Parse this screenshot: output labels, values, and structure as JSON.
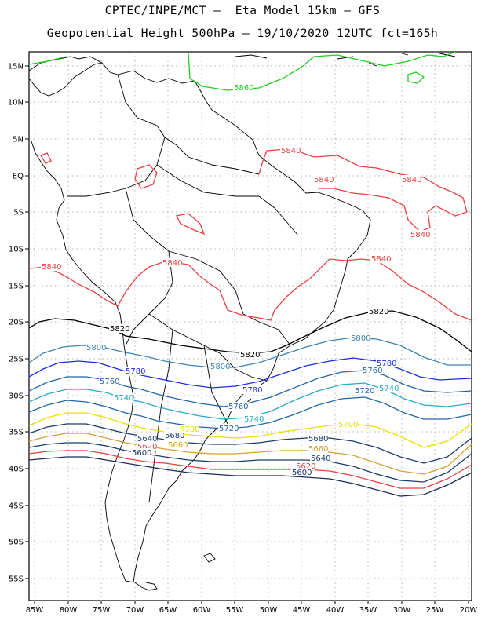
{
  "title_line1": "CPTEC/INPE/MCT –  Eta Model 15km – GFS",
  "title_line2": "Geopotential Height 500hPa – 19/10/2020 12UTC fct=165h",
  "lon_labels": [
    "85W",
    "80W",
    "75W",
    "70W",
    "65W",
    "60W",
    "55W",
    "50W",
    "45W",
    "40W",
    "35W",
    "30W",
    "25W",
    "20W"
  ],
  "lat_labels": [
    "15N",
    "10N",
    "5N",
    "EQ",
    "5S",
    "10S",
    "15S",
    "20S",
    "25S",
    "30S",
    "35S",
    "40S",
    "45S",
    "50S",
    "55S"
  ],
  "contour_labels": [
    {
      "text": "5860",
      "color": "#22cc22"
    },
    {
      "text": "5840",
      "color": "#e84040"
    },
    {
      "text": "5840",
      "color": "#e84040"
    },
    {
      "text": "5840",
      "color": "#e84040"
    },
    {
      "text": "5840",
      "color": "#e84040"
    },
    {
      "text": "5840",
      "color": "#e84040"
    },
    {
      "text": "5840",
      "color": "#e84040"
    },
    {
      "text": "5840",
      "color": "#e84040"
    },
    {
      "text": "5820",
      "color": "#000000"
    },
    {
      "text": "5820",
      "color": "#000000"
    },
    {
      "text": "5820",
      "color": "#000000"
    },
    {
      "text": "5800",
      "color": "#3a86b4"
    },
    {
      "text": "5800",
      "color": "#3a86b4"
    },
    {
      "text": "5800",
      "color": "#3a86b4"
    },
    {
      "text": "5780",
      "color": "#1a2cdc"
    },
    {
      "text": "5780",
      "color": "#1a2cdc"
    },
    {
      "text": "5780",
      "color": "#1a2cdc"
    },
    {
      "text": "5760",
      "color": "#2266aa"
    },
    {
      "text": "5760",
      "color": "#2266aa"
    },
    {
      "text": "5760",
      "color": "#2266aa"
    },
    {
      "text": "5740",
      "color": "#2aa8c8"
    },
    {
      "text": "5740",
      "color": "#2aa8c8"
    },
    {
      "text": "5740",
      "color": "#2aa8c8"
    },
    {
      "text": "5720",
      "color": "#2266aa"
    },
    {
      "text": "5720",
      "color": "#2266aa"
    },
    {
      "text": "5700",
      "color": "#e8e000"
    },
    {
      "text": "5700",
      "color": "#e8e000"
    },
    {
      "text": "5680",
      "color": "#1c3c6c"
    },
    {
      "text": "5680",
      "color": "#1c3c6c"
    },
    {
      "text": "5660",
      "color": "#d8a030"
    },
    {
      "text": "5660",
      "color": "#d8a030"
    },
    {
      "text": "5640",
      "color": "#1c3c6c"
    },
    {
      "text": "5640",
      "color": "#1c3c6c"
    },
    {
      "text": "5620",
      "color": "#e84040"
    },
    {
      "text": "5620",
      "color": "#e84040"
    },
    {
      "text": "5600",
      "color": "#1c2c5c"
    },
    {
      "text": "5600",
      "color": "#1c2c5c"
    }
  ]
}
